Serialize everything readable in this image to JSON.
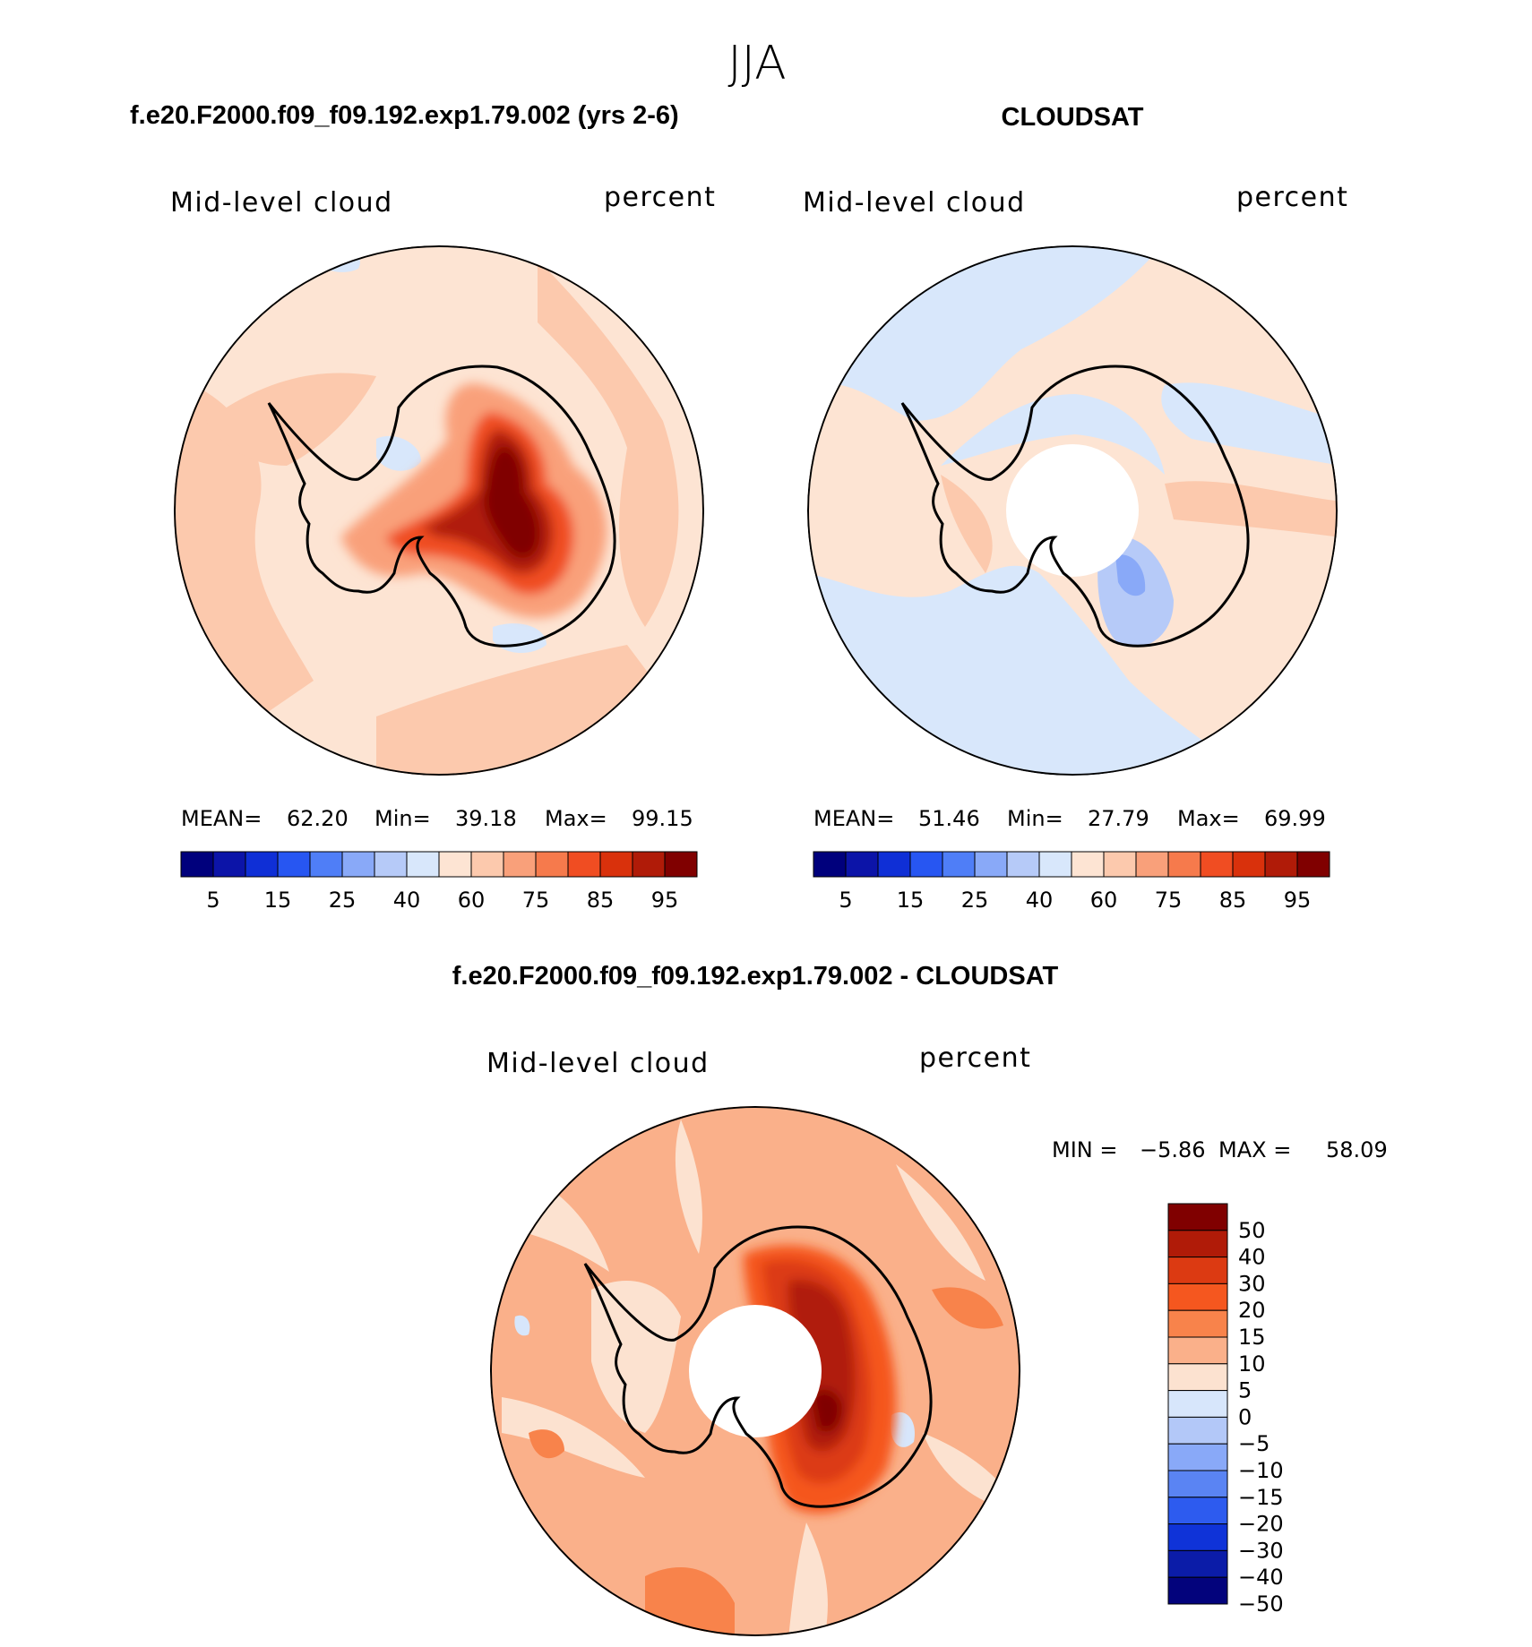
{
  "figure": {
    "title": "JJA"
  },
  "panels": [
    {
      "id": "model",
      "header": "f.e20.F2000.f09_f09.192.exp1.79.002 (yrs 2-6)",
      "left_label": "Mid-level cloud",
      "right_label": "percent",
      "stats": {
        "mean_label": "MEAN=",
        "mean": "62.20",
        "min_label": "Min=",
        "min": "39.18",
        "max_label": "Max=",
        "max": "99.15"
      },
      "colorbar": {
        "orientation": "horizontal",
        "tick_labels": [
          "5",
          "15",
          "25",
          "40",
          "60",
          "75",
          "85",
          "95"
        ]
      }
    },
    {
      "id": "obs",
      "header": "CLOUDSAT",
      "left_label": "Mid-level cloud",
      "right_label": "percent",
      "stats": {
        "mean_label": "MEAN=",
        "mean": "51.46",
        "min_label": "Min=",
        "min": "27.79",
        "max_label": "Max=",
        "max": "69.99"
      },
      "colorbar": {
        "orientation": "horizontal",
        "tick_labels": [
          "5",
          "15",
          "25",
          "40",
          "60",
          "75",
          "85",
          "95"
        ]
      }
    },
    {
      "id": "diff",
      "header": "f.e20.F2000.f09_f09.192.exp1.79.002 - CLOUDSAT",
      "left_label": "Mid-level cloud",
      "right_label": "percent",
      "stats": {
        "min_label": "MIN =",
        "min": "−5.86",
        "max_label": "MAX =",
        "max": "58.09"
      },
      "colorbar": {
        "orientation": "vertical",
        "tick_labels": [
          "50",
          "40",
          "30",
          "20",
          "15",
          "10",
          "5",
          "0",
          "−5",
          "−10",
          "−15",
          "−20",
          "−30",
          "−40",
          "−50"
        ]
      }
    }
  ],
  "colors": {
    "abs_palette": [
      "#00007c",
      "#0c14a8",
      "#0f2fd6",
      "#2756f2",
      "#4f7ef7",
      "#89a9f8",
      "#b6caf8",
      "#d8e7fb",
      "#fde4d3",
      "#fcc9ad",
      "#f9a07a",
      "#f67a4c",
      "#f04d22",
      "#d9310c",
      "#b01b08",
      "#800000"
    ],
    "diff_palette": [
      "#800000",
      "#b01b08",
      "#dc3a12",
      "#f5571f",
      "#f8834b",
      "#fab08a",
      "#fce2d0",
      "#d7e6fb",
      "#b3c8f8",
      "#89a9f8",
      "#5a84f3",
      "#2d5bef",
      "#0f33d8",
      "#0b1ca8",
      "#03037c"
    ],
    "map_border": "#000000",
    "coastline": "#000000"
  }
}
